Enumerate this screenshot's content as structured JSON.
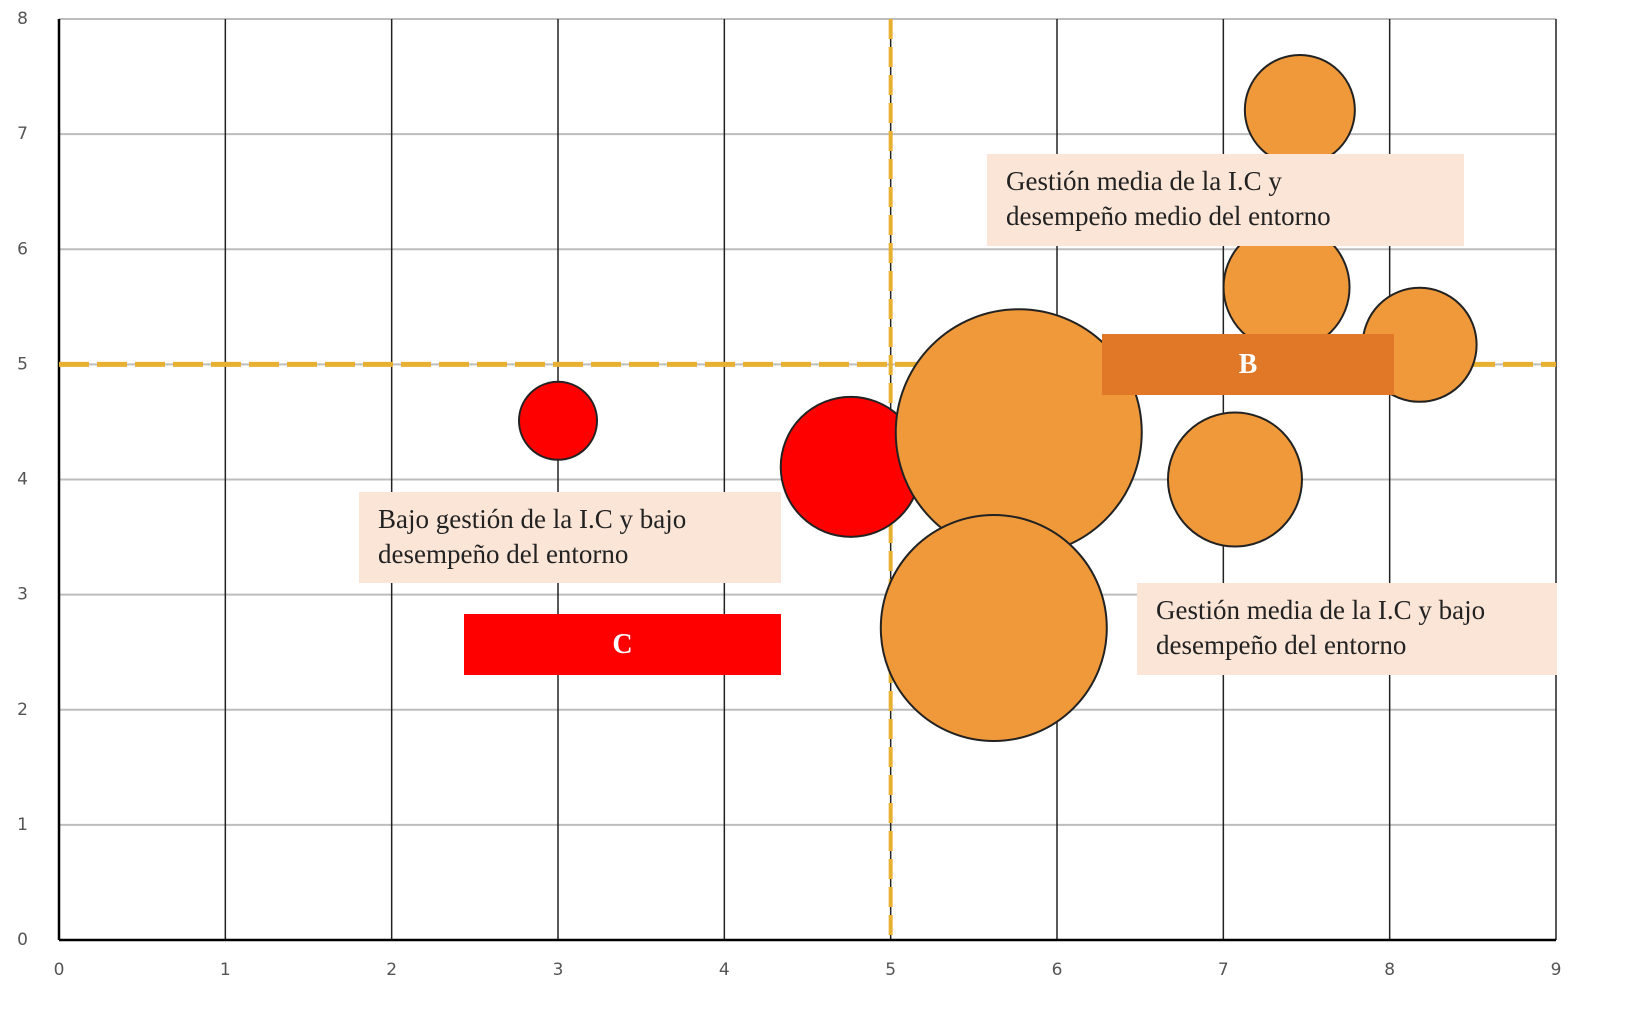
{
  "chart_data": {
    "type": "bubble",
    "xlim": [
      0,
      9
    ],
    "xticks": [
      0,
      1,
      2,
      3,
      4,
      5,
      6,
      7,
      8,
      9
    ],
    "ylim": [
      0,
      8
    ],
    "yticks": [
      0,
      1,
      2,
      3,
      4,
      5,
      6,
      7,
      8
    ],
    "grid": true,
    "series": [
      {
        "color": "#ff0000",
        "x": [
          3.0,
          4.76
        ],
        "values": [
          4.51,
          4.11
        ],
        "sizes": [
          3.9,
          7.0
        ]
      },
      {
        "color": "#f0993a",
        "x": [
          5.77,
          5.62,
          7.46,
          7.38,
          8.18,
          7.07
        ],
        "values": [
          4.41,
          2.71,
          7.21,
          5.67,
          5.17,
          4.0
        ],
        "sizes": [
          12.3,
          11.3,
          5.5,
          6.3,
          5.7,
          6.7
        ]
      }
    ],
    "reference_lines": {
      "color": "#e8b030",
      "x": [
        5
      ],
      "y": [
        5
      ]
    },
    "annotations": [
      {
        "lines": [
          "Gestión media de la I.C y",
          "desempeño medio del entorno"
        ],
        "background": "#fbe5d6"
      },
      {
        "lines": [
          "B"
        ],
        "background": "#e07828"
      },
      {
        "lines": [
          "Bajo gestión de la I.C y bajo",
          "desempeño del entorno"
        ],
        "background": "#fbe5d6"
      },
      {
        "lines": [
          "C"
        ],
        "background": "#ff0000"
      },
      {
        "lines": [
          "Gestión media de la I.C y bajo",
          "desempeño del entorno"
        ],
        "background": "#fbe5d6"
      }
    ]
  }
}
